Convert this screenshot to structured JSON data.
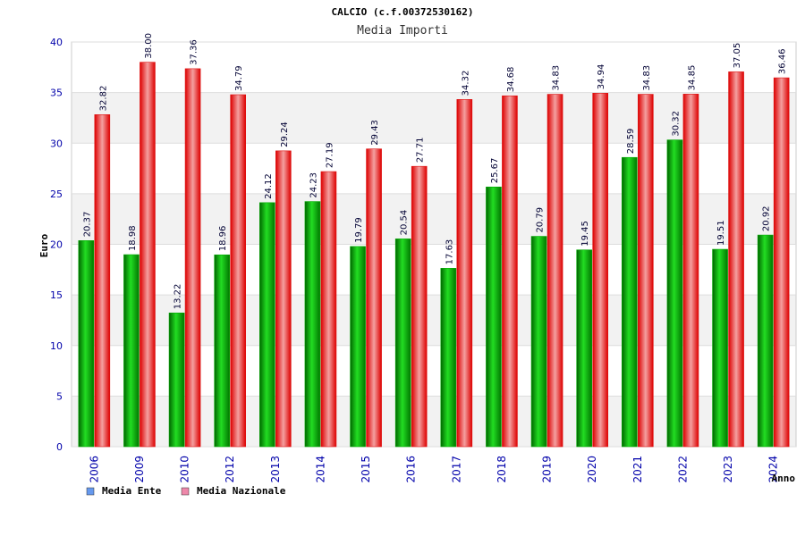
{
  "chart_data": {
    "type": "bar",
    "title": "CALCIO (c.f.00372530162)",
    "subtitle": "Media Importi",
    "ylabel": "Euro",
    "xlabel": "Anno",
    "ylim": [
      0,
      40
    ],
    "yticks": [
      0,
      5,
      10,
      15,
      20,
      25,
      30,
      35,
      40
    ],
    "categories": [
      "2006",
      "2009",
      "2010",
      "2012",
      "2013",
      "2014",
      "2015",
      "2016",
      "2017",
      "2018",
      "2019",
      "2020",
      "2021",
      "2022",
      "2023",
      "2024"
    ],
    "series": [
      {
        "name": "Media Ente",
        "values": [
          20.37,
          18.98,
          13.22,
          18.96,
          24.12,
          24.23,
          19.79,
          20.54,
          17.63,
          25.67,
          20.79,
          19.45,
          28.59,
          30.32,
          19.51,
          20.92
        ],
        "labels": [
          "20.37",
          "18.98",
          "13.22",
          "18.96",
          "24.12",
          "24.23",
          "19.79",
          "20.54",
          "17.63",
          "25.67",
          "20.79",
          "19.45",
          "28.59",
          "30.32",
          "19.51",
          "20.92"
        ]
      },
      {
        "name": "Media Nazionale",
        "values": [
          32.82,
          38.0,
          37.36,
          34.79,
          29.24,
          27.19,
          29.43,
          27.71,
          34.32,
          34.68,
          34.83,
          34.94,
          34.83,
          34.85,
          37.05,
          36.46
        ],
        "labels": [
          "32.82",
          "38.00",
          "37.36",
          "34.79",
          "29.24",
          "27.19",
          "29.43",
          "27.71",
          "34.32",
          "34.68",
          "34.83",
          "34.94",
          "34.83",
          "34.85",
          "37.05",
          "36.46"
        ]
      }
    ],
    "legend_position": "bottom-left",
    "grid": true
  },
  "colors": {
    "ente": "#00aa00",
    "nazionale": "#dd1111",
    "legend_ente": "#6699ee",
    "legend_nazionale": "#ee88aa",
    "axis_text": "#0000aa",
    "band": "#f2f2f2"
  }
}
